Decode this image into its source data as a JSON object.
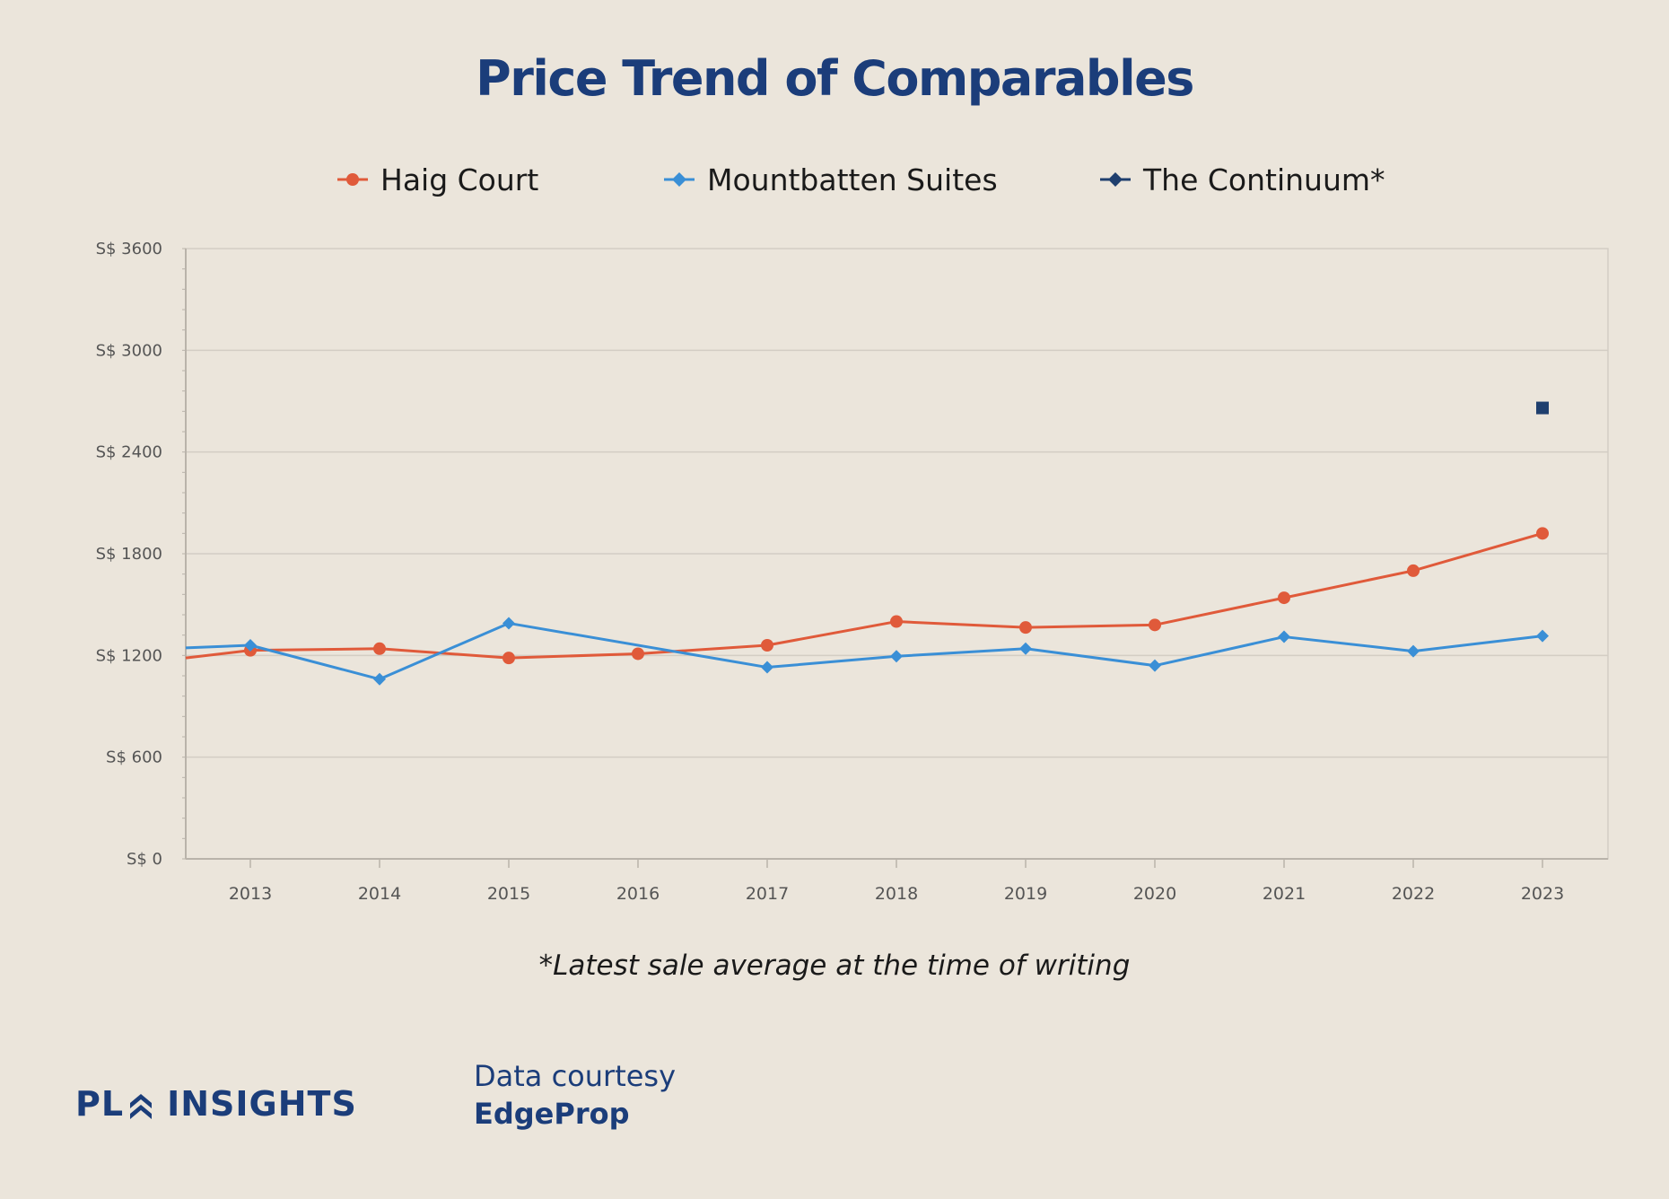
{
  "chart_data": {
    "type": "line",
    "title": "Price Trend of Comparables",
    "categories": [
      "2013",
      "2014",
      "2015",
      "2016",
      "2017",
      "2018",
      "2019",
      "2020",
      "2021",
      "2022",
      "2023"
    ],
    "ylim": [
      0,
      3600
    ],
    "yticks": [
      0,
      600,
      1200,
      1800,
      2400,
      3000,
      3600
    ],
    "ytick_labels": [
      "S$ 0",
      "S$ 600",
      "S$ 1200",
      "S$ 1800",
      "S$ 2400",
      "S$ 3000",
      "S$ 3600"
    ],
    "grid": true,
    "legend_position": "top",
    "series": [
      {
        "name": "Haig Court",
        "color": "#e05a3a",
        "marker": "circle",
        "values": [
          1230,
          1240,
          1185,
          1210,
          1260,
          1400,
          1365,
          1380,
          1540,
          1700,
          1920
        ],
        "start_value": 1185
      },
      {
        "name": "Mountbatten Suites",
        "color": "#3a8fd6",
        "marker": "diamond",
        "values": [
          1260,
          1060,
          1390,
          null,
          1130,
          1195,
          1240,
          1140,
          1310,
          1225,
          1315
        ],
        "start_value": 1245
      },
      {
        "name": "The Continuum*",
        "color": "#1f3f6e",
        "marker": "square",
        "values": [
          null,
          null,
          null,
          null,
          null,
          null,
          null,
          null,
          null,
          null,
          2660
        ]
      }
    ]
  },
  "footnote": "*Latest sale average at the time of writing",
  "logo": {
    "left": "PL",
    "right": "INSIGHTS"
  },
  "courtesy": {
    "line1": "Data courtesy",
    "line2": "EdgeProp"
  }
}
